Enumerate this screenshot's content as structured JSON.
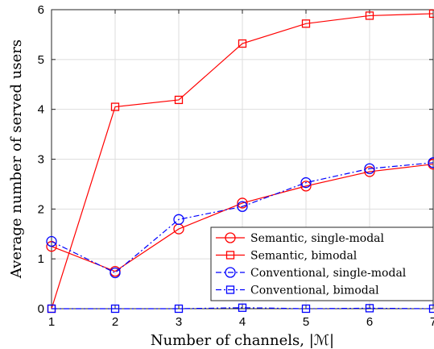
{
  "chart_data": {
    "type": "line",
    "title": "",
    "xlabel": "Number of channels, |ℳ|",
    "ylabel": "Average number of served users",
    "xlim": [
      1,
      7
    ],
    "ylim": [
      0,
      6
    ],
    "x": [
      1,
      2,
      3,
      4,
      5,
      6,
      7
    ],
    "x_ticks": [
      "1",
      "2",
      "3",
      "4",
      "5",
      "6",
      "7"
    ],
    "y_ticks": [
      "0",
      "1",
      "2",
      "3",
      "4",
      "5",
      "6"
    ],
    "grid": true,
    "legend_position": "bottom-right",
    "series": [
      {
        "name": "Semantic, single-modal",
        "values": [
          1.25,
          0.75,
          1.6,
          2.12,
          2.46,
          2.75,
          2.9
        ],
        "color": "#ff0000",
        "marker": "circle",
        "dash": "solid"
      },
      {
        "name": "Semantic, bimodal",
        "values": [
          0.0,
          4.05,
          4.19,
          5.32,
          5.72,
          5.88,
          5.92
        ],
        "color": "#ff0000",
        "marker": "square",
        "dash": "solid"
      },
      {
        "name": "Conventional, single-modal",
        "values": [
          1.35,
          0.72,
          1.79,
          2.05,
          2.53,
          2.81,
          2.93
        ],
        "color": "#0000ff",
        "marker": "circle",
        "dash": "dashdot"
      },
      {
        "name": "Conventional, bimodal",
        "values": [
          0.0,
          0.0,
          0.0,
          0.02,
          0.0,
          0.01,
          0.0
        ],
        "color": "#0000ff",
        "marker": "square",
        "dash": "dashdot"
      }
    ]
  }
}
